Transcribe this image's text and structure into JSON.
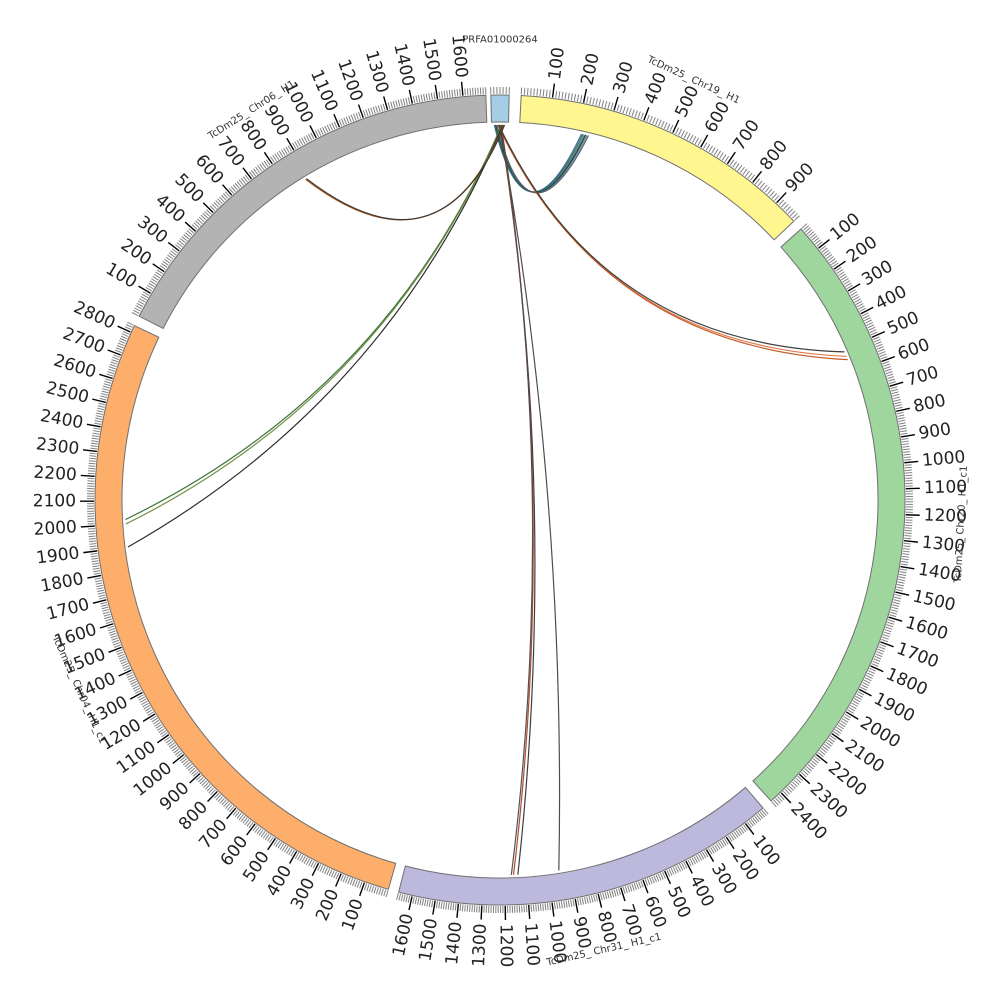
{
  "diagram": {
    "type": "circos",
    "segments": [
      {
        "id": "prfa",
        "label": "PRFA01000264",
        "length": 60,
        "color": "#a6cde6",
        "tick_labels": [],
        "start_deg": -1.3,
        "end_deg": 1.3
      },
      {
        "id": "chr19",
        "label": "TcDm25_ Chr19_ H1",
        "length": 980,
        "color": "#fff68f",
        "tick_labels": [
          "100",
          "200",
          "300",
          "400",
          "500",
          "600",
          "700",
          "800",
          "900"
        ],
        "start_deg": 3.0,
        "end_deg": 46.5
      },
      {
        "id": "chr20",
        "label": "TcDm25_ Chr20_ H1_c1",
        "length": 2450,
        "color": "#9ed69e",
        "tick_labels": [
          "100",
          "200",
          "300",
          "400",
          "500",
          "600",
          "700",
          "800",
          "900",
          "1000",
          "1100",
          "1200",
          "1300",
          "1400",
          "1500",
          "1600",
          "1700",
          "1800",
          "1900",
          "2000",
          "2100",
          "2200",
          "2300",
          "2400"
        ],
        "start_deg": 48.0,
        "end_deg": 138.0
      },
      {
        "id": "chr31",
        "label": "TcDm25_ Chr31_ H1_c1",
        "length": 1660,
        "color": "#bcb9dc",
        "tick_labels": [
          "100",
          "200",
          "300",
          "400",
          "500",
          "600",
          "700",
          "800",
          "900",
          "1000",
          "1100",
          "1200",
          "1300",
          "1400",
          "1500",
          "1600"
        ],
        "start_deg": 139.5,
        "end_deg": 194.5
      },
      {
        "id": "chr04",
        "label": "TcDm25_ Chr04_ H1_c1",
        "length": 2830,
        "color": "#fdae6b",
        "tick_labels": [
          "100",
          "200",
          "300",
          "400",
          "500",
          "600",
          "700",
          "800",
          "900",
          "1000",
          "1100",
          "1200",
          "1300",
          "1400",
          "1500",
          "1600",
          "1700",
          "1800",
          "1900",
          "2000",
          "2100",
          "2200",
          "2300",
          "2400",
          "2500",
          "2600",
          "2700",
          "2800"
        ],
        "start_deg": 196.0,
        "end_deg": 295.5
      },
      {
        "id": "chr06",
        "label": "TcDm25_ Chr06_ H1",
        "length": 1690,
        "color": "#b3b3b3",
        "tick_labels": [
          "100",
          "200",
          "300",
          "400",
          "500",
          "600",
          "700",
          "800",
          "900",
          "1000",
          "1100",
          "1200",
          "1300",
          "1400",
          "1500",
          "1600"
        ],
        "start_deg": 297.0,
        "end_deg": 358.0
      }
    ],
    "links": [
      {
        "from": "prfa",
        "from_pos": 10,
        "to": "chr19",
        "to_pos": 215,
        "color": "#2e6b8f"
      },
      {
        "from": "prfa",
        "from_pos": 12,
        "to": "chr19",
        "to_pos": 220,
        "color": "#3a5a7a"
      },
      {
        "from": "prfa",
        "from_pos": 14,
        "to": "chr19",
        "to_pos": 225,
        "color": "#2f8a4f"
      },
      {
        "from": "prfa",
        "from_pos": 16,
        "to": "chr19",
        "to_pos": 230,
        "color": "#222222"
      },
      {
        "from": "prfa",
        "from_pos": 18,
        "to": "chr19",
        "to_pos": 235,
        "color": "#4a7fb0"
      },
      {
        "from": "prfa",
        "from_pos": 20,
        "to": "chr19",
        "to_pos": 240,
        "color": "#5a5a5a"
      },
      {
        "from": "prfa",
        "from_pos": 22,
        "to": "chr20",
        "to_pos": 530,
        "color": "#e0703a"
      },
      {
        "from": "prfa",
        "from_pos": 24,
        "to": "chr20",
        "to_pos": 545,
        "color": "#c0551f"
      },
      {
        "from": "prfa",
        "from_pos": 26,
        "to": "chr20",
        "to_pos": 510,
        "color": "#333333"
      },
      {
        "from": "prfa",
        "from_pos": 28,
        "to": "chr31",
        "to_pos": 950,
        "color": "#444444"
      },
      {
        "from": "prfa",
        "from_pos": 30,
        "to": "chr31",
        "to_pos": 1140,
        "color": "#333333"
      },
      {
        "from": "prfa",
        "from_pos": 32,
        "to": "chr31",
        "to_pos": 1160,
        "color": "#b04020"
      },
      {
        "from": "prfa",
        "from_pos": 34,
        "to": "chr31",
        "to_pos": 1170,
        "color": "#4a4a4a"
      },
      {
        "from": "prfa",
        "from_pos": 36,
        "to": "chr04",
        "to_pos": 2020,
        "color": "#2f6a2f"
      },
      {
        "from": "prfa",
        "from_pos": 38,
        "to": "chr04",
        "to_pos": 2000,
        "color": "#6a8a3a"
      },
      {
        "from": "prfa",
        "from_pos": 40,
        "to": "chr04",
        "to_pos": 1900,
        "color": "#222222"
      },
      {
        "from": "prfa",
        "from_pos": 44,
        "to": "chr06",
        "to_pos": 880,
        "color": "#b85a1a"
      },
      {
        "from": "prfa",
        "from_pos": 46,
        "to": "chr06",
        "to_pos": 885,
        "color": "#333333"
      }
    ]
  }
}
